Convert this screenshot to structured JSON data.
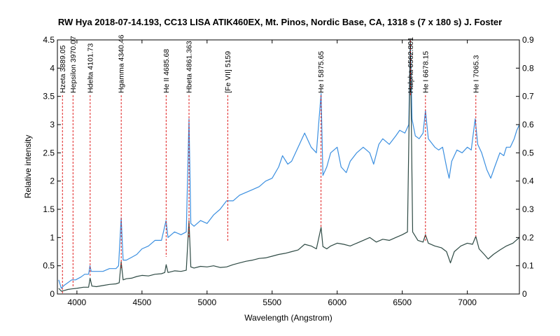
{
  "chart_data": {
    "type": "line",
    "title": "RW Hya   2018-07-14.193, CC13 LISA ATIK460EX, Mt. Pinos, Nordic Base, CA, 1318 s (7 x 180 s)  J. Foster",
    "xlabel": "Wavelength (Angstrom)",
    "ylabel": "Relative intensity",
    "xlim": [
      3850,
      7400
    ],
    "ylim_left": [
      0,
      4.5
    ],
    "ylim_right": [
      0,
      0.9
    ],
    "x_ticks": [
      "4000",
      "4500",
      "5000",
      "5500",
      "6000",
      "6500",
      "7000"
    ],
    "y_left_ticks": [
      "0",
      "0.5",
      "1",
      "1.5",
      "2",
      "2.5",
      "3",
      "3.5",
      "4",
      "4.5"
    ],
    "y_right_ticks": [
      "0",
      "0.1",
      "0.2",
      "0.3",
      "0.4",
      "0.5",
      "0.6",
      "0.7",
      "0.8",
      "0.9"
    ],
    "grid": false,
    "colors": {
      "blue_series": "#3b8fe0",
      "dark_series": "#2e4a44",
      "line_markers": "#e02020"
    },
    "series": [
      {
        "axis": "right",
        "color": "#3b8fe0",
        "points": [
          [
            3860,
            0.05
          ],
          [
            3880,
            0.02
          ],
          [
            3900,
            0.03
          ],
          [
            3930,
            0.04
          ],
          [
            3960,
            0.05
          ],
          [
            3990,
            0.05
          ],
          [
            4030,
            0.06
          ],
          [
            4060,
            0.07
          ],
          [
            4090,
            0.07
          ],
          [
            4100,
            0.1
          ],
          [
            4110,
            0.08
          ],
          [
            4150,
            0.08
          ],
          [
            4200,
            0.08
          ],
          [
            4250,
            0.09
          ],
          [
            4300,
            0.09
          ],
          [
            4320,
            0.1
          ],
          [
            4340,
            0.27
          ],
          [
            4355,
            0.12
          ],
          [
            4380,
            0.12
          ],
          [
            4420,
            0.13
          ],
          [
            4460,
            0.14
          ],
          [
            4500,
            0.16
          ],
          [
            4550,
            0.17
          ],
          [
            4600,
            0.19
          ],
          [
            4650,
            0.19
          ],
          [
            4685,
            0.26
          ],
          [
            4700,
            0.2
          ],
          [
            4750,
            0.22
          ],
          [
            4800,
            0.21
          ],
          [
            4840,
            0.22
          ],
          [
            4861,
            0.62
          ],
          [
            4875,
            0.25
          ],
          [
            4900,
            0.24
          ],
          [
            4950,
            0.26
          ],
          [
            5000,
            0.25
          ],
          [
            5050,
            0.28
          ],
          [
            5100,
            0.3
          ],
          [
            5150,
            0.33
          ],
          [
            5200,
            0.33
          ],
          [
            5250,
            0.35
          ],
          [
            5300,
            0.36
          ],
          [
            5350,
            0.37
          ],
          [
            5400,
            0.38
          ],
          [
            5450,
            0.4
          ],
          [
            5500,
            0.41
          ],
          [
            5550,
            0.45
          ],
          [
            5580,
            0.49
          ],
          [
            5620,
            0.46
          ],
          [
            5650,
            0.47
          ],
          [
            5700,
            0.52
          ],
          [
            5750,
            0.57
          ],
          [
            5800,
            0.52
          ],
          [
            5840,
            0.5
          ],
          [
            5876,
            0.71
          ],
          [
            5890,
            0.42
          ],
          [
            5920,
            0.45
          ],
          [
            5950,
            0.5
          ],
          [
            6000,
            0.52
          ],
          [
            6030,
            0.45
          ],
          [
            6070,
            0.43
          ],
          [
            6100,
            0.47
          ],
          [
            6150,
            0.5
          ],
          [
            6200,
            0.52
          ],
          [
            6250,
            0.5
          ],
          [
            6280,
            0.46
          ],
          [
            6320,
            0.53
          ],
          [
            6350,
            0.55
          ],
          [
            6400,
            0.53
          ],
          [
            6450,
            0.56
          ],
          [
            6480,
            0.58
          ],
          [
            6520,
            0.57
          ],
          [
            6550,
            0.6
          ],
          [
            6562,
            0.92
          ],
          [
            6575,
            0.62
          ],
          [
            6600,
            0.56
          ],
          [
            6630,
            0.55
          ],
          [
            6660,
            0.57
          ],
          [
            6678,
            0.65
          ],
          [
            6700,
            0.55
          ],
          [
            6750,
            0.52
          ],
          [
            6780,
            0.51
          ],
          [
            6810,
            0.52
          ],
          [
            6840,
            0.45
          ],
          [
            6860,
            0.41
          ],
          [
            6880,
            0.47
          ],
          [
            6920,
            0.51
          ],
          [
            6960,
            0.5
          ],
          [
            7000,
            0.52
          ],
          [
            7030,
            0.51
          ],
          [
            7060,
            0.62
          ],
          [
            7080,
            0.53
          ],
          [
            7110,
            0.5
          ],
          [
            7150,
            0.44
          ],
          [
            7180,
            0.41
          ],
          [
            7210,
            0.45
          ],
          [
            7250,
            0.5
          ],
          [
            7280,
            0.49
          ],
          [
            7300,
            0.52
          ],
          [
            7330,
            0.52
          ],
          [
            7360,
            0.55
          ],
          [
            7380,
            0.58
          ],
          [
            7400,
            0.6
          ]
        ]
      },
      {
        "axis": "left",
        "color": "#2e4a44",
        "points": [
          [
            3860,
            0.1
          ],
          [
            3880,
            0.05
          ],
          [
            3900,
            0.06
          ],
          [
            3930,
            0.08
          ],
          [
            3960,
            0.09
          ],
          [
            4000,
            0.1
          ],
          [
            4050,
            0.12
          ],
          [
            4090,
            0.12
          ],
          [
            4101,
            0.28
          ],
          [
            4115,
            0.14
          ],
          [
            4150,
            0.13
          ],
          [
            4200,
            0.15
          ],
          [
            4250,
            0.17
          ],
          [
            4300,
            0.18
          ],
          [
            4325,
            0.2
          ],
          [
            4340,
            0.57
          ],
          [
            4355,
            0.25
          ],
          [
            4380,
            0.27
          ],
          [
            4420,
            0.28
          ],
          [
            4460,
            0.31
          ],
          [
            4500,
            0.33
          ],
          [
            4550,
            0.32
          ],
          [
            4600,
            0.35
          ],
          [
            4650,
            0.36
          ],
          [
            4675,
            0.38
          ],
          [
            4686,
            0.52
          ],
          [
            4700,
            0.38
          ],
          [
            4750,
            0.41
          ],
          [
            4800,
            0.4
          ],
          [
            4840,
            0.42
          ],
          [
            4861,
            1.3
          ],
          [
            4875,
            0.48
          ],
          [
            4900,
            0.46
          ],
          [
            4950,
            0.49
          ],
          [
            5000,
            0.48
          ],
          [
            5050,
            0.5
          ],
          [
            5100,
            0.47
          ],
          [
            5150,
            0.48
          ],
          [
            5200,
            0.52
          ],
          [
            5250,
            0.55
          ],
          [
            5300,
            0.58
          ],
          [
            5350,
            0.6
          ],
          [
            5400,
            0.63
          ],
          [
            5450,
            0.64
          ],
          [
            5500,
            0.67
          ],
          [
            5550,
            0.7
          ],
          [
            5600,
            0.72
          ],
          [
            5650,
            0.75
          ],
          [
            5700,
            0.78
          ],
          [
            5750,
            0.88
          ],
          [
            5800,
            0.85
          ],
          [
            5840,
            0.8
          ],
          [
            5876,
            1.18
          ],
          [
            5890,
            0.84
          ],
          [
            5920,
            0.8
          ],
          [
            5950,
            0.85
          ],
          [
            6000,
            0.9
          ],
          [
            6050,
            0.88
          ],
          [
            6100,
            0.85
          ],
          [
            6150,
            0.9
          ],
          [
            6200,
            0.95
          ],
          [
            6250,
            1.0
          ],
          [
            6300,
            0.92
          ],
          [
            6350,
            0.97
          ],
          [
            6400,
            0.95
          ],
          [
            6450,
            1.0
          ],
          [
            6500,
            1.05
          ],
          [
            6540,
            1.1
          ],
          [
            6562,
            4.5
          ],
          [
            6580,
            1.1
          ],
          [
            6620,
            0.95
          ],
          [
            6660,
            0.92
          ],
          [
            6678,
            1.05
          ],
          [
            6700,
            0.9
          ],
          [
            6750,
            0.85
          ],
          [
            6800,
            0.82
          ],
          [
            6840,
            0.75
          ],
          [
            6870,
            0.55
          ],
          [
            6900,
            0.75
          ],
          [
            6950,
            0.85
          ],
          [
            7000,
            0.9
          ],
          [
            7040,
            0.88
          ],
          [
            7065,
            1.02
          ],
          [
            7090,
            0.8
          ],
          [
            7130,
            0.7
          ],
          [
            7160,
            0.62
          ],
          [
            7200,
            0.7
          ],
          [
            7250,
            0.78
          ],
          [
            7300,
            0.85
          ],
          [
            7350,
            0.9
          ],
          [
            7400,
            1.0
          ]
        ]
      }
    ],
    "line_markers": [
      {
        "wavelength": 3889.05,
        "label": "Hzeta 3889.05"
      },
      {
        "wavelength": 3970.07,
        "label": "Hepsilon 3970.07"
      },
      {
        "wavelength": 4101.73,
        "label": "Hdelta 4101.73"
      },
      {
        "wavelength": 4340.46,
        "label": "Hgamma 4340.46"
      },
      {
        "wavelength": 4685.68,
        "label": "He II 4685.68"
      },
      {
        "wavelength": 4861.363,
        "label": "Hbeta 4861.363"
      },
      {
        "wavelength": 5159,
        "label": "[Fe VII] 5159"
      },
      {
        "wavelength": 5875.65,
        "label": "He I 5875.65"
      },
      {
        "wavelength": 6562.801,
        "label": "Halpha 6562.801"
      },
      {
        "wavelength": 6678.15,
        "label": "He I 6678.15"
      },
      {
        "wavelength": 7065.3,
        "label": "He I 7065.3"
      }
    ]
  }
}
